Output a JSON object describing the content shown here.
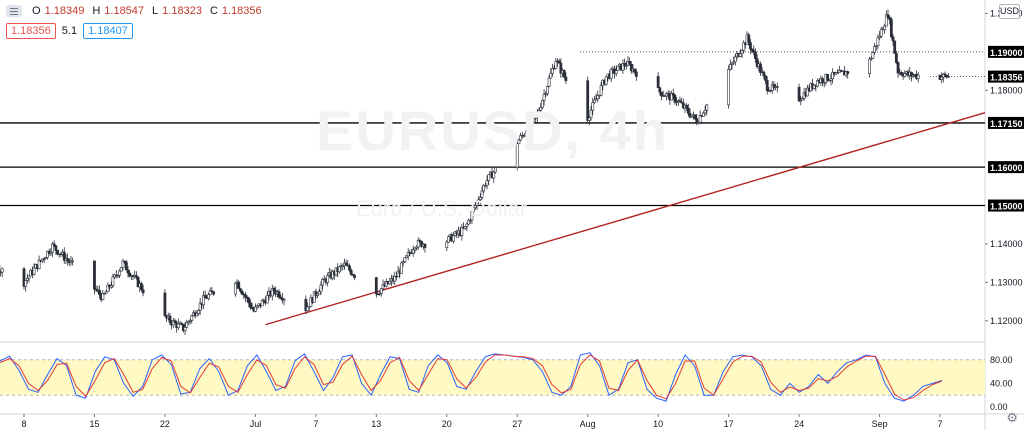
{
  "header": {
    "open_key": "O",
    "open": "1.18349",
    "high_key": "H",
    "high": "1.18547",
    "low_key": "L",
    "low": "1.18323",
    "close_key": "C",
    "close": "1.18356",
    "sell_price": "1.18356",
    "spread": "5.1",
    "buy_price": "1.18407",
    "currency": "USD"
  },
  "watermark": {
    "symbol": "EURUSD, 4h",
    "name": "Euro / U.S. Dollar"
  },
  "colors": {
    "up": "#26a69a",
    "down": "#ef5350",
    "candle": "#2a2e39",
    "trendline": "#b22222",
    "stoch_k": "#2962ff",
    "stoch_d": "#e53935",
    "band": "#fff9c4",
    "level": "#000000"
  },
  "chart_data": [
    {
      "type": "candlestick",
      "title": "",
      "x_ticks": [
        "8",
        "15",
        "22",
        "Jul",
        "7",
        "13",
        "20",
        "27",
        "Aug",
        "10",
        "17",
        "24",
        "Sep",
        "7"
      ],
      "y_ticks": [
        "1.20000",
        "1.19000",
        "1.18000",
        "1.17150",
        "1.16000",
        "1.15000",
        "1.14000",
        "1.13000",
        "1.12000"
      ],
      "ylim": [
        1.115,
        1.2035
      ],
      "close_anchors": [
        {
          "x": "Jun 2",
          "y": 1.126
        },
        {
          "x": "Jun 4",
          "y": 1.1365
        },
        {
          "x": "Jun 8",
          "y": 1.1295
        },
        {
          "x": "Jun 11",
          "y": 1.1395
        },
        {
          "x": "Jun 13",
          "y": 1.1345
        },
        {
          "x": "Jun 16",
          "y": 1.126
        },
        {
          "x": "Jun 18",
          "y": 1.135
        },
        {
          "x": "Jun 22",
          "y": 1.121
        },
        {
          "x": "Jun 24",
          "y": 1.118
        },
        {
          "x": "Jun 26",
          "y": 1.1255
        },
        {
          "x": "Jun 29",
          "y": 1.1315
        },
        {
          "x": "Jul 1",
          "y": 1.1225
        },
        {
          "x": "Jul 3",
          "y": 1.128
        },
        {
          "x": "Jul 6",
          "y": 1.1225
        },
        {
          "x": "Jul 8",
          "y": 1.1305
        },
        {
          "x": "Jul 10",
          "y": 1.1345
        },
        {
          "x": "Jul 13",
          "y": 1.127
        },
        {
          "x": "Jul 15",
          "y": 1.131
        },
        {
          "x": "Jul 17",
          "y": 1.14
        },
        {
          "x": "Jul 20",
          "y": 1.1405
        },
        {
          "x": "Jul 22",
          "y": 1.144
        },
        {
          "x": "Jul 24",
          "y": 1.156
        },
        {
          "x": "Jul 27",
          "y": 1.166
        },
        {
          "x": "Jul 29",
          "y": 1.1725
        },
        {
          "x": "Jul 31",
          "y": 1.188
        },
        {
          "x": "Aug 3",
          "y": 1.172
        },
        {
          "x": "Aug 5",
          "y": 1.1835
        },
        {
          "x": "Aug 7",
          "y": 1.187
        },
        {
          "x": "Aug 10",
          "y": 1.18
        },
        {
          "x": "Aug 12",
          "y": 1.1775
        },
        {
          "x": "Aug 14",
          "y": 1.172
        },
        {
          "x": "Aug 17",
          "y": 1.1845
        },
        {
          "x": "Aug 19",
          "y": 1.1935
        },
        {
          "x": "Aug 21",
          "y": 1.181
        },
        {
          "x": "Aug 24",
          "y": 1.1775
        },
        {
          "x": "Aug 26",
          "y": 1.1825
        },
        {
          "x": "Aug 28",
          "y": 1.184
        },
        {
          "x": "Aug 31",
          "y": 1.1865
        },
        {
          "x": "Sep 2",
          "y": 1.2
        },
        {
          "x": "Sep 3",
          "y": 1.185
        },
        {
          "x": "Sep 4",
          "y": 1.184
        },
        {
          "x": "Sep 7",
          "y": 1.1836
        }
      ],
      "horizontal_levels": [
        1.19,
        1.1715,
        1.16,
        1.15
      ],
      "trendline": [
        {
          "x": "Jul 2",
          "y": 1.119
        },
        {
          "x": "Sep 8",
          "y": 1.1715
        }
      ],
      "last_price": 1.18356,
      "last_price_label": "1.18356"
    },
    {
      "type": "line",
      "title": "",
      "y_ticks": [
        "80.00",
        "40.00",
        "0.00"
      ],
      "ylim": [
        -5,
        105
      ],
      "band": [
        20,
        80
      ],
      "series": [
        {
          "values": [
            78,
            86,
            62,
            30,
            25,
            55,
            82,
            70,
            20,
            15,
            60,
            85,
            80,
            40,
            18,
            35,
            80,
            88,
            72,
            22,
            25,
            65,
            82,
            60,
            20,
            28,
            70,
            88,
            60,
            28,
            35,
            78,
            90,
            60,
            28,
            50,
            85,
            88,
            40,
            20,
            55,
            85,
            82,
            30,
            25,
            70,
            88,
            75,
            35,
            30,
            60,
            85,
            90,
            88,
            86,
            84,
            80,
            60,
            25,
            20,
            35,
            88,
            92,
            70,
            20,
            30,
            75,
            80,
            30,
            15,
            10,
            55,
            88,
            70,
            20,
            20,
            60,
            85,
            88,
            85,
            70,
            30,
            20,
            40,
            25,
            35,
            55,
            40,
            60,
            75,
            80,
            88,
            85,
            40,
            15,
            10,
            20,
            35,
            40,
            45
          ]
        },
        {
          "values": [
            75,
            82,
            70,
            40,
            28,
            45,
            72,
            74,
            35,
            18,
            45,
            75,
            82,
            55,
            25,
            30,
            65,
            84,
            78,
            35,
            24,
            50,
            74,
            68,
            35,
            25,
            55,
            80,
            70,
            38,
            32,
            65,
            85,
            72,
            38,
            42,
            72,
            86,
            55,
            28,
            45,
            75,
            84,
            45,
            28,
            55,
            82,
            80,
            48,
            32,
            50,
            76,
            88,
            88,
            86,
            85,
            82,
            70,
            38,
            24,
            30,
            72,
            88,
            78,
            32,
            28,
            62,
            80,
            45,
            20,
            14,
            40,
            78,
            78,
            32,
            20,
            48,
            76,
            86,
            86,
            76,
            42,
            25,
            34,
            28,
            32,
            48,
            44,
            52,
            68,
            78,
            86,
            86,
            55,
            22,
            12,
            16,
            28,
            38,
            44
          ]
        }
      ]
    }
  ]
}
